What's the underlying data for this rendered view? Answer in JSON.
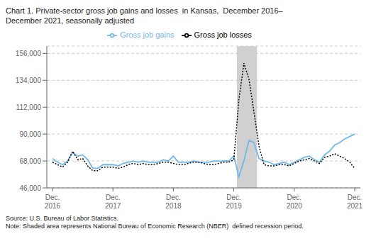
{
  "chart_data": {
    "type": "line",
    "title": "Chart 1. Private-sector gross job gains and losses  in Kansas,  December 2016–\nDecember 2021, seasonally adjusted",
    "source_note": "Source: U.S. Bureau of Labor Statistics.\nNote: Shaded area represents National Bureau of Economic Research (NBER)  defined recession period.",
    "categories": [
      "Dec.\n2016",
      null,
      null,
      null,
      null,
      null,
      null,
      null,
      null,
      null,
      null,
      null,
      "Dec.\n2017",
      null,
      null,
      null,
      null,
      null,
      null,
      null,
      null,
      null,
      null,
      null,
      "Dec.\n2018",
      null,
      null,
      null,
      null,
      null,
      null,
      null,
      null,
      null,
      null,
      null,
      "Dec.\n2019",
      null,
      null,
      null,
      null,
      null,
      null,
      null,
      null,
      null,
      null,
      null,
      "Dec.\n2020",
      null,
      null,
      null,
      null,
      null,
      null,
      null,
      null,
      null,
      null,
      null,
      "Dec.\n2021"
    ],
    "series": [
      {
        "name": "Gross job gains",
        "color": "#72b8e8",
        "line_style": "solid",
        "values": [
          70000,
          67000,
          65000,
          68000,
          75000,
          72000,
          73000,
          69000,
          62000,
          62000,
          65000,
          65000,
          65000,
          64000,
          66000,
          67000,
          68000,
          67000,
          68000,
          67000,
          67000,
          67000,
          69000,
          68000,
          72000,
          67000,
          67000,
          67000,
          68000,
          67000,
          67000,
          67000,
          68000,
          68000,
          68000,
          68000,
          72000,
          55000,
          68000,
          85000,
          83000,
          70000,
          68000,
          67000,
          65000,
          66000,
          67000,
          65000,
          67000,
          69000,
          71000,
          72000,
          69000,
          67000,
          73000,
          76000,
          81000,
          83000,
          86000,
          88000,
          90000
        ]
      },
      {
        "name": "Gross job losses",
        "color": "#000000",
        "line_style": "dotted",
        "values": [
          67000,
          65000,
          63000,
          67000,
          76000,
          69000,
          70000,
          64000,
          60000,
          60000,
          63000,
          63000,
          63000,
          62000,
          63000,
          65000,
          66000,
          65000,
          66000,
          65000,
          65000,
          66000,
          67000,
          67000,
          66000,
          65000,
          65000,
          66000,
          67000,
          67000,
          66000,
          65000,
          65000,
          66000,
          67000,
          67000,
          69000,
          118000,
          148000,
          135000,
          108000,
          80000,
          65000,
          64000,
          64000,
          65000,
          65000,
          64000,
          66000,
          68000,
          69000,
          70000,
          68000,
          66000,
          71000,
          72000,
          74000,
          72000,
          70000,
          67000,
          62000
        ]
      }
    ],
    "shaded": {
      "start": 37,
      "end": 42,
      "color": "#d0d0d0"
    },
    "ylim": [
      46000,
      162000
    ],
    "yticks": [
      {
        "value": 46000,
        "label": "46,000"
      },
      {
        "value": 68000,
        "label": "68,000"
      },
      {
        "value": 90000,
        "label": "90,000"
      },
      {
        "value": 112000,
        "label": "112,000"
      },
      {
        "value": 134000,
        "label": "134,000"
      },
      {
        "value": 156000,
        "label": "156,000"
      }
    ],
    "grid": true,
    "legend": "top"
  }
}
